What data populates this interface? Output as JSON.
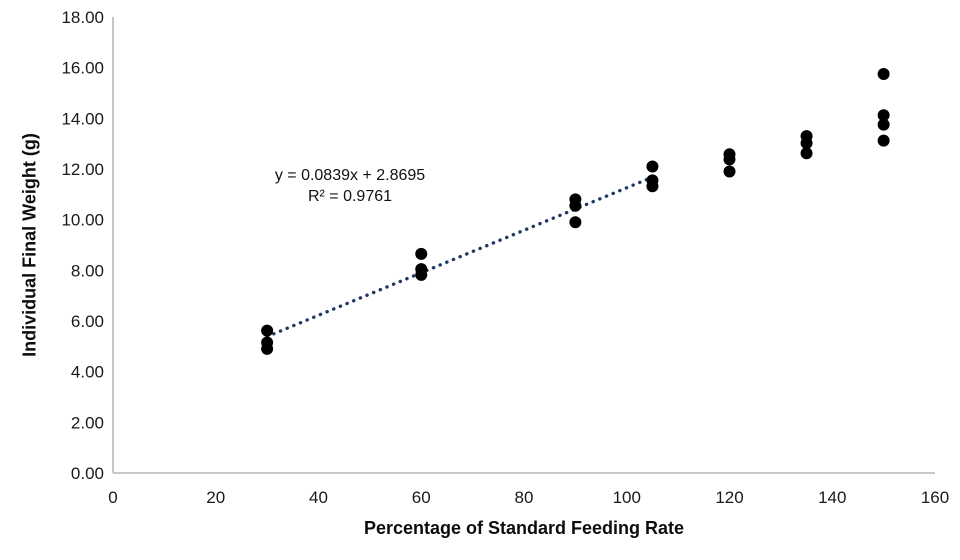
{
  "chart_data": {
    "type": "scatter",
    "title": "",
    "xlabel": "Percentage of Standard Feeding Rate",
    "ylabel": "Individual Final Weight (g)",
    "xlim": [
      0,
      160
    ],
    "ylim": [
      0,
      18
    ],
    "grid": false,
    "legend": "none",
    "axis_color": "#bfbfbf",
    "point_color": "#000000",
    "x_ticks": [
      {
        "value": 0,
        "label": "0"
      },
      {
        "value": 20,
        "label": "20"
      },
      {
        "value": 40,
        "label": "40"
      },
      {
        "value": 60,
        "label": "60"
      },
      {
        "value": 80,
        "label": "80"
      },
      {
        "value": 100,
        "label": "100"
      },
      {
        "value": 120,
        "label": "120"
      },
      {
        "value": 140,
        "label": "140"
      },
      {
        "value": 160,
        "label": "160"
      }
    ],
    "y_ticks": [
      {
        "value": 0,
        "label": "0.00"
      },
      {
        "value": 2,
        "label": "2.00"
      },
      {
        "value": 4,
        "label": "4.00"
      },
      {
        "value": 6,
        "label": "6.00"
      },
      {
        "value": 8,
        "label": "8.00"
      },
      {
        "value": 10,
        "label": "10.00"
      },
      {
        "value": 12,
        "label": "12.00"
      },
      {
        "value": 14,
        "label": "14.00"
      },
      {
        "value": 16,
        "label": "16.00"
      },
      {
        "value": 18,
        "label": "18.00"
      }
    ],
    "points": [
      {
        "x": 30,
        "y": 5.62
      },
      {
        "x": 30,
        "y": 5.15
      },
      {
        "x": 30,
        "y": 4.9
      },
      {
        "x": 60,
        "y": 8.65
      },
      {
        "x": 60,
        "y": 8.05
      },
      {
        "x": 60,
        "y": 7.82
      },
      {
        "x": 90,
        "y": 10.8
      },
      {
        "x": 90,
        "y": 10.55
      },
      {
        "x": 90,
        "y": 9.9
      },
      {
        "x": 105,
        "y": 12.1
      },
      {
        "x": 105,
        "y": 11.55
      },
      {
        "x": 105,
        "y": 11.32
      },
      {
        "x": 120,
        "y": 12.58
      },
      {
        "x": 120,
        "y": 12.38
      },
      {
        "x": 120,
        "y": 11.9
      },
      {
        "x": 135,
        "y": 13.3
      },
      {
        "x": 135,
        "y": 13.02
      },
      {
        "x": 135,
        "y": 12.62
      },
      {
        "x": 150,
        "y": 15.75
      },
      {
        "x": 150,
        "y": 14.12
      },
      {
        "x": 150,
        "y": 13.75
      },
      {
        "x": 150,
        "y": 13.12
      }
    ],
    "trendline": {
      "slope": 0.0839,
      "intercept": 2.8695,
      "x_start": 30,
      "x_end": 105,
      "color": "#1f3864",
      "style": "round-dot"
    },
    "annotation": {
      "line1": "y = 0.0839x + 2.8695",
      "line2": "R² = 0.9761"
    }
  }
}
